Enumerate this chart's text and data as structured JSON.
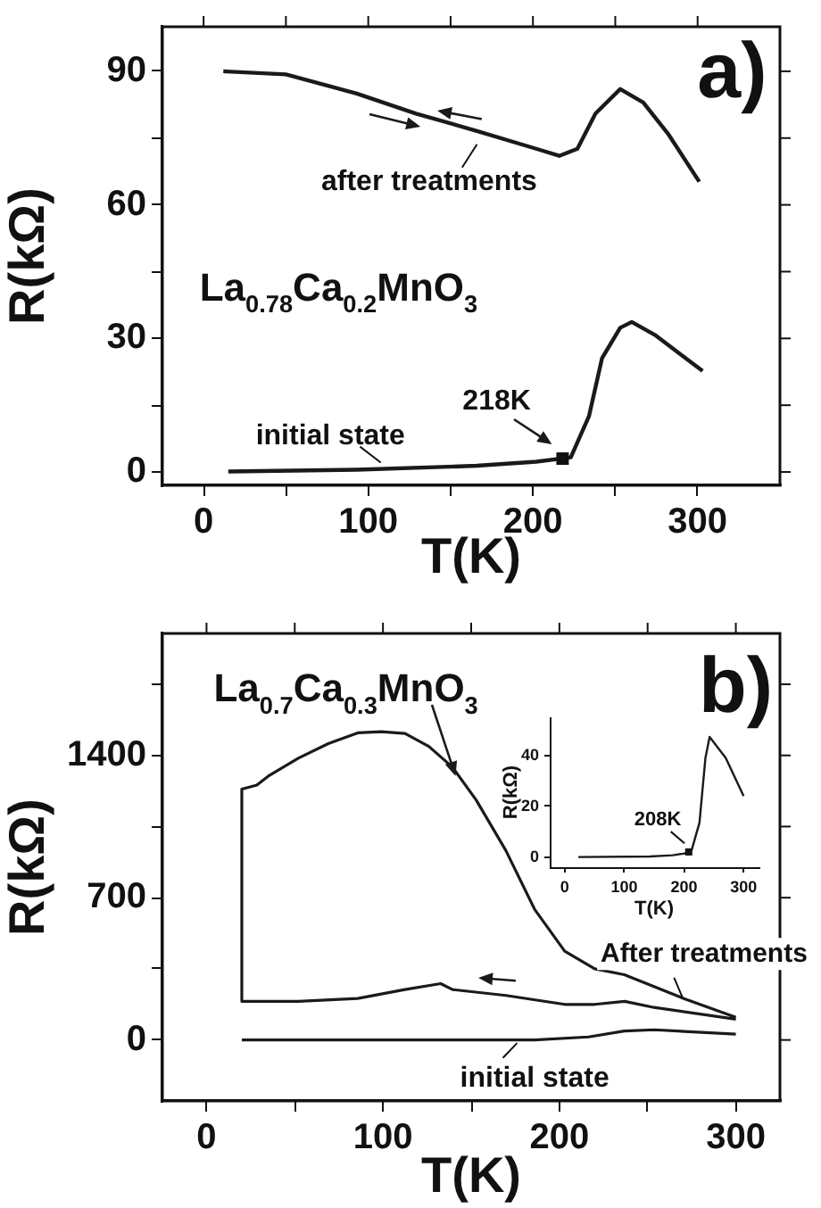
{
  "chart_data": [
    {
      "type": "line",
      "title": "a)",
      "xlabel": "T(K)",
      "ylabel": "R(kΩ)",
      "xlim": [
        -25,
        350
      ],
      "ylim": [
        -3,
        100
      ],
      "xticks": [
        0,
        {
          "value": 50,
          "label": null
        },
        100,
        {
          "value": 150,
          "label": null
        },
        200,
        {
          "value": 250,
          "label": null
        },
        300
      ],
      "yticks": [
        0,
        {
          "value": 15,
          "label": null
        },
        30,
        {
          "value": 45,
          "label": null
        },
        60,
        {
          "value": 75,
          "label": null
        },
        90
      ],
      "series": [
        {
          "name": "after treatments",
          "color": "#1a1a1a",
          "x": [
            12,
            50,
            93,
            129,
            166,
            202,
            216,
            227,
            238,
            253,
            267,
            282,
            301
          ],
          "values": [
            90,
            89.3,
            85,
            80.5,
            76.6,
            72.6,
            71,
            72.6,
            80.5,
            86,
            83,
            76,
            65.2
          ]
        },
        {
          "name": "initial state",
          "color": "#1a1a1a",
          "x": [
            15,
            93,
            166,
            202,
            223,
            234,
            242,
            253,
            260,
            274,
            303
          ],
          "values": [
            0.1,
            0.5,
            1.4,
            2.3,
            3.3,
            12.5,
            25.6,
            32.4,
            33.7,
            30.8,
            22.7
          ]
        }
      ],
      "annotations": [
        "La$_{0.78}$Ca$_{0.2}$MnO$_{3}$",
        {
          "text": "218K",
          "x": 218,
          "y": 3
        }
      ]
    },
    {
      "type": "line",
      "title": "b)",
      "xlabel": "T(K)",
      "ylabel": "R(kΩ)",
      "xlim": [
        -25,
        325
      ],
      "ylim": [
        -300,
        2000
      ],
      "xticks": [
        0,
        {
          "value": 50,
          "label": null
        },
        100,
        {
          "value": 150,
          "label": null
        },
        200,
        {
          "value": 250,
          "label": null
        },
        300
      ],
      "yticks": [
        0,
        {
          "value": 350,
          "label": null
        },
        700,
        {
          "value": 1050,
          "label": null
        },
        1400,
        {
          "value": 1750,
          "label": null
        }
      ],
      "series": [
        {
          "name": "After treatments",
          "color": "#1a1a1a",
          "x": [
            300,
            270.5,
            236.8,
            220,
            203,
            186,
            169.6,
            152.8,
            139.4,
            126,
            112.5,
            99,
            85.7,
            69,
            52,
            35,
            28.5,
            20,
            20,
            52,
            85.7,
            112.5,
            132.7,
            139.4,
            169.6,
            203,
            220,
            237,
            253.6,
            300
          ],
          "values": [
            111,
            204,
            321,
            350,
            437,
            642,
            933,
            1181,
            1342,
            1444,
            1508,
            1517,
            1511,
            1458,
            1386,
            1298,
            1254,
            1234,
            190,
            190,
            204,
            248,
            277,
            248,
            219,
            175,
            175,
            190,
            160,
            102
          ]
        },
        {
          "name": "initial state",
          "color": "#1a1a1a",
          "x": [
            20,
            186,
            216.6,
            236.8,
            253.6,
            300
          ],
          "values": [
            0,
            0,
            15,
            44,
            50,
            29
          ]
        }
      ],
      "annotations": [
        "La$_{0.7}$Ca$_{0.3}$MnO$_{3}$"
      ]
    },
    {
      "type": "line",
      "xlabel": "T(K)",
      "ylabel": "R(kΩ)",
      "xlim": [
        -25,
        325
      ],
      "ylim": [
        -4,
        55
      ],
      "xticks": [
        0,
        100,
        200,
        300
      ],
      "yticks": [
        0,
        20,
        40
      ],
      "series": [
        {
          "color": "#1a1a1a",
          "x": [
            23,
            143,
            181,
            201,
            213,
            226,
            236,
            243,
            270,
            300
          ],
          "values": [
            0,
            0.2,
            0.7,
            1.4,
            2.8,
            13.5,
            39,
            47.3,
            39,
            24
          ]
        }
      ],
      "annotations": [
        {
          "text": "208K",
          "x": 208,
          "y": 2
        }
      ]
    }
  ]
}
